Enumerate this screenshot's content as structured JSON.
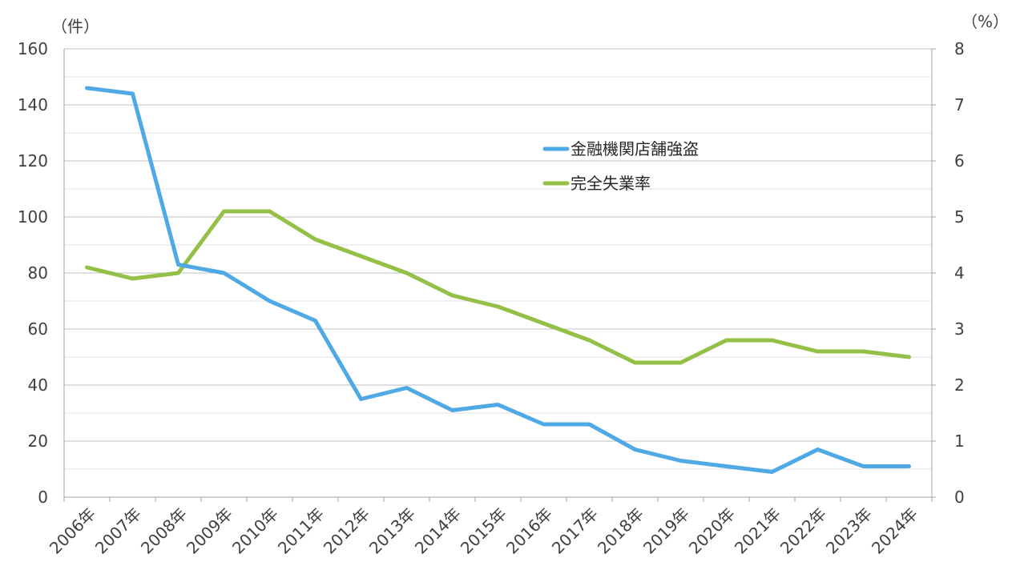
{
  "chart_data": {
    "type": "line",
    "categories": [
      "2006年",
      "2007年",
      "2008年",
      "2009年",
      "2010年",
      "2011年",
      "2012年",
      "2013年",
      "2014年",
      "2015年",
      "2016年",
      "2017年",
      "2018年",
      "2019年",
      "2020年",
      "2021年",
      "2022年",
      "2023年",
      "2024年"
    ],
    "y_left": {
      "unit": "（件）",
      "range": [
        0,
        160
      ],
      "ticks": [
        0,
        20,
        40,
        60,
        80,
        100,
        120,
        140,
        160
      ]
    },
    "y_right": {
      "unit": "（%）",
      "range": [
        0,
        8
      ],
      "ticks": [
        0,
        1,
        2,
        3,
        4,
        5,
        6,
        7,
        8
      ]
    },
    "grid": true,
    "legend_position": "upper-center-right",
    "series": [
      {
        "name": "金融機関店舗強盗",
        "axis": "left",
        "color": "#4EA9E4",
        "values": [
          146,
          144,
          83,
          80,
          70,
          63,
          35,
          39,
          31,
          33,
          26,
          26,
          17,
          13,
          11,
          9,
          17,
          11,
          11
        ]
      },
      {
        "name": "完全失業率",
        "axis": "right",
        "color": "#95C047",
        "values": [
          4.1,
          3.9,
          4.0,
          5.1,
          5.1,
          4.6,
          4.3,
          4.0,
          3.6,
          3.4,
          3.1,
          2.8,
          2.4,
          2.4,
          2.8,
          2.8,
          2.6,
          2.6,
          2.5
        ]
      }
    ]
  }
}
